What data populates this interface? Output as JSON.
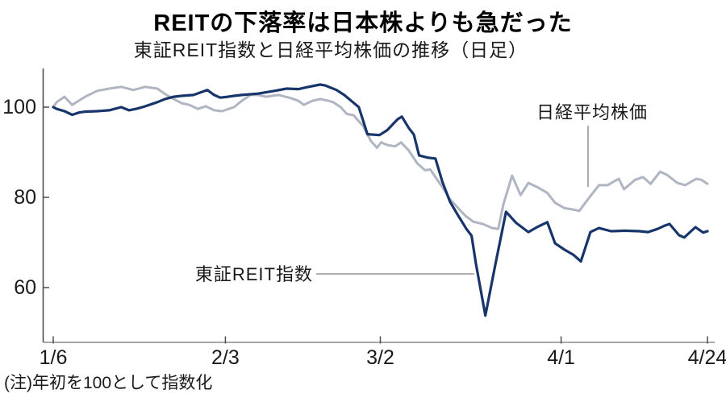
{
  "header": {
    "title": "REITの下落率は日本株よりも急だった",
    "subtitle": "東証REIT指数と日経平均株価の推移（日足）"
  },
  "note": "(注)年初を100として指数化",
  "colors": {
    "nikkei_line": "#b0b5c2",
    "reit_line": "#17356b",
    "x_axis": "#9b9b9b",
    "y_axis": "#4d4d4d",
    "leader_line": "#808080"
  },
  "chart_data": {
    "type": "line",
    "title": "REITの下落率は日本株よりも急だった",
    "subtitle": "東証REIT指数と日経平均株価の推移（日足）",
    "note": "(注)年初を100として指数化",
    "grid": false,
    "x_axis": {
      "unit": "2020 trading days (1/6 = day 0)",
      "range": [
        0,
        76
      ],
      "ticks": [
        {
          "pos": 0,
          "label": "1/6"
        },
        {
          "pos": 20,
          "label": "2/3"
        },
        {
          "pos": 38,
          "label": "3/2"
        },
        {
          "pos": 59,
          "label": "4/1"
        },
        {
          "pos": 76,
          "label": "4/24"
        }
      ]
    },
    "y_axis": {
      "unit": "index (start of year = 100)",
      "range": [
        52,
        108.5
      ],
      "ticks": [
        100,
        80,
        60
      ]
    },
    "series": [
      {
        "name": "日経平均株価",
        "color": "#b0b5c2",
        "points": [
          [
            0,
            100
          ],
          [
            0.4,
            101.1
          ],
          [
            1.3,
            102.3
          ],
          [
            2.2,
            100.5
          ],
          [
            3.7,
            102.3
          ],
          [
            5.1,
            103.6
          ],
          [
            6.5,
            104.1
          ],
          [
            7.9,
            104.5
          ],
          [
            9.3,
            103.8
          ],
          [
            10.7,
            104.5
          ],
          [
            12.1,
            104.1
          ],
          [
            13,
            102.9
          ],
          [
            14,
            101.8
          ],
          [
            14.9,
            100.9
          ],
          [
            15.8,
            100.5
          ],
          [
            16.8,
            99.6
          ],
          [
            17.7,
            100.2
          ],
          [
            18.7,
            99.3
          ],
          [
            19.6,
            99.1
          ],
          [
            21,
            100
          ],
          [
            21.9,
            101.4
          ],
          [
            22.9,
            102.7
          ],
          [
            23.8,
            102.7
          ],
          [
            24.7,
            102.3
          ],
          [
            26.2,
            102.7
          ],
          [
            27.6,
            102
          ],
          [
            28.5,
            101.4
          ],
          [
            29.1,
            100.5
          ],
          [
            30.1,
            101.4
          ],
          [
            31,
            101.8
          ],
          [
            32,
            101.4
          ],
          [
            32.5,
            101.1
          ],
          [
            33.4,
            100
          ],
          [
            34.1,
            98.5
          ],
          [
            34.9,
            98.2
          ],
          [
            35.3,
            97.3
          ],
          [
            36,
            95.8
          ],
          [
            36.9,
            92.5
          ],
          [
            37.6,
            91
          ],
          [
            38.1,
            92.2
          ],
          [
            38.8,
            91.6
          ],
          [
            39.7,
            91.3
          ],
          [
            40.4,
            92.2
          ],
          [
            41.3,
            90.4
          ],
          [
            42.3,
            87.5
          ],
          [
            43.2,
            86
          ],
          [
            43.8,
            86.2
          ],
          [
            44.4,
            84.5
          ],
          [
            45.2,
            82.3
          ],
          [
            46.1,
            79.6
          ],
          [
            47,
            77.7
          ],
          [
            47.9,
            75.9
          ],
          [
            48.8,
            74.6
          ],
          [
            49.9,
            74.1
          ],
          [
            51,
            73.2
          ],
          [
            51.7,
            73
          ],
          [
            52.3,
            78.5
          ],
          [
            53.3,
            84.8
          ],
          [
            54.3,
            80.5
          ],
          [
            55.2,
            83.2
          ],
          [
            56.2,
            82.3
          ],
          [
            57.4,
            81
          ],
          [
            58.3,
            78.8
          ],
          [
            59.4,
            77.6
          ],
          [
            60.4,
            77.3
          ],
          [
            61.1,
            77
          ],
          [
            62.5,
            80.5
          ],
          [
            63.4,
            82.7
          ],
          [
            64.4,
            82.7
          ],
          [
            65.2,
            83.6
          ],
          [
            65.7,
            84.1
          ],
          [
            66.3,
            81.8
          ],
          [
            67.6,
            83.9
          ],
          [
            68.5,
            84.5
          ],
          [
            69.4,
            83
          ],
          [
            70.5,
            85.7
          ],
          [
            71.3,
            85
          ],
          [
            72.5,
            83.2
          ],
          [
            73.4,
            82.7
          ],
          [
            74.7,
            84.1
          ],
          [
            75.3,
            83.9
          ],
          [
            76,
            83
          ]
        ]
      },
      {
        "name": "東証REIT指数",
        "color": "#17356b",
        "points": [
          [
            0,
            100
          ],
          [
            0.4,
            99.6
          ],
          [
            1.3,
            99.1
          ],
          [
            2.2,
            98.3
          ],
          [
            3,
            98.8
          ],
          [
            3.7,
            99
          ],
          [
            5.1,
            99.1
          ],
          [
            6.5,
            99.3
          ],
          [
            7.9,
            100
          ],
          [
            8.8,
            99.3
          ],
          [
            9.8,
            99.7
          ],
          [
            10.7,
            100.2
          ],
          [
            12.1,
            101.1
          ],
          [
            13,
            101.8
          ],
          [
            14,
            102.3
          ],
          [
            14.9,
            102.5
          ],
          [
            16.3,
            102.7
          ],
          [
            17.9,
            103.8
          ],
          [
            18.7,
            102.7
          ],
          [
            19.4,
            102.1
          ],
          [
            20.3,
            102.3
          ],
          [
            21,
            102.5
          ],
          [
            21.9,
            102.7
          ],
          [
            23.8,
            103
          ],
          [
            25.7,
            103.6
          ],
          [
            27.1,
            104.1
          ],
          [
            28.5,
            104
          ],
          [
            29.4,
            104.4
          ],
          [
            31,
            105
          ],
          [
            31.6,
            104.8
          ],
          [
            32.9,
            103.8
          ],
          [
            33.8,
            102.7
          ],
          [
            34.8,
            101.1
          ],
          [
            35.5,
            100
          ],
          [
            36.5,
            94
          ],
          [
            37.9,
            93.8
          ],
          [
            38.8,
            94.9
          ],
          [
            40,
            97.3
          ],
          [
            40.5,
            97.9
          ],
          [
            41.3,
            95.4
          ],
          [
            41.9,
            93.9
          ],
          [
            42.5,
            89.3
          ],
          [
            43.5,
            88.8
          ],
          [
            44.4,
            88.6
          ],
          [
            45.2,
            83.5
          ],
          [
            46.1,
            79
          ],
          [
            47,
            76.1
          ],
          [
            48,
            73
          ],
          [
            48.6,
            71.5
          ],
          [
            49.1,
            65.4
          ],
          [
            50.2,
            53.8
          ],
          [
            51.4,
            65.5
          ],
          [
            52.6,
            76.8
          ],
          [
            53.8,
            74.3
          ],
          [
            55.2,
            72.3
          ],
          [
            56.3,
            73.5
          ],
          [
            57.4,
            74.5
          ],
          [
            58.3,
            69.8
          ],
          [
            59.4,
            68.4
          ],
          [
            60.4,
            67.3
          ],
          [
            61.3,
            65.8
          ],
          [
            62.4,
            72.3
          ],
          [
            63.4,
            73.2
          ],
          [
            64.8,
            72.5
          ],
          [
            66.4,
            72.6
          ],
          [
            68.1,
            72.5
          ],
          [
            69.1,
            72.3
          ],
          [
            70.2,
            73
          ],
          [
            71,
            73.7
          ],
          [
            71.6,
            74.1
          ],
          [
            72.7,
            71.6
          ],
          [
            73.3,
            71.1
          ],
          [
            74.6,
            73.4
          ],
          [
            75.5,
            72.2
          ],
          [
            76,
            72.5
          ]
        ]
      }
    ],
    "annotations": [
      {
        "text": "日経平均株価",
        "attached_to": "日経平均株価"
      },
      {
        "text": "東証REIT指数",
        "attached_to": "東証REIT指数"
      }
    ]
  }
}
